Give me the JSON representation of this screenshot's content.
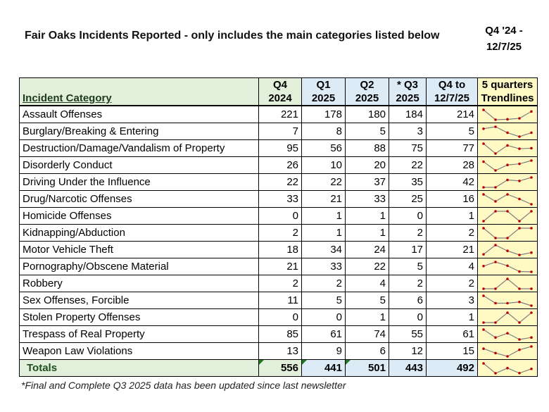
{
  "title": "Fair Oaks Incidents Reported - only includes the main categories listed below",
  "range_label": "Q4 '24 - 12/7/25",
  "headers": {
    "category": "Incident Category",
    "q4_2024": [
      "Q4",
      "2024"
    ],
    "q1_2025": [
      "Q1",
      "2025"
    ],
    "q2_2025": [
      "Q2",
      "2025"
    ],
    "q3_2025": [
      "* Q3",
      "2025"
    ],
    "q4_to_date": [
      "Q4 to",
      "12/7/25"
    ],
    "trend": [
      "5 quarters",
      "Trendlines"
    ]
  },
  "rows": [
    {
      "category": "Assault Offenses",
      "values": [
        221,
        178,
        180,
        184,
        214
      ]
    },
    {
      "category": "Burglary/Breaking & Entering",
      "values": [
        7,
        8,
        5,
        3,
        5
      ]
    },
    {
      "category": "Destruction/Damage/Vandalism of Property",
      "values": [
        95,
        56,
        88,
        75,
        77
      ]
    },
    {
      "category": "Disorderly Conduct",
      "values": [
        26,
        10,
        20,
        22,
        28
      ]
    },
    {
      "category": "Driving Under the Influence",
      "values": [
        22,
        22,
        37,
        35,
        42
      ]
    },
    {
      "category": "Drug/Narcotic Offenses",
      "values": [
        33,
        21,
        33,
        25,
        16
      ]
    },
    {
      "category": "Homicide Offenses",
      "values": [
        0,
        1,
        1,
        0,
        1
      ]
    },
    {
      "category": "Kidnapping/Abduction",
      "values": [
        2,
        1,
        1,
        2,
        2
      ]
    },
    {
      "category": "Motor Vehicle Theft",
      "values": [
        18,
        34,
        24,
        17,
        21
      ]
    },
    {
      "category": "Pornography/Obscene Material",
      "values": [
        21,
        33,
        22,
        5,
        4
      ]
    },
    {
      "category": "Robbery",
      "values": [
        2,
        2,
        4,
        2,
        2
      ]
    },
    {
      "category": "Sex Offenses, Forcible",
      "values": [
        11,
        5,
        5,
        6,
        3
      ]
    },
    {
      "category": "Stolen Property Offenses",
      "values": [
        0,
        0,
        1,
        0,
        1
      ]
    },
    {
      "category": "Trespass of Real Property",
      "values": [
        85,
        61,
        74,
        55,
        61
      ]
    },
    {
      "category": "Weapon Law Violations",
      "values": [
        13,
        9,
        6,
        12,
        15
      ]
    }
  ],
  "totals": {
    "label": "Totals",
    "values": [
      556,
      441,
      501,
      443,
      492
    ]
  },
  "footnote": "*Final and Complete Q3 2025 data has been updated since last newsletter",
  "colors": {
    "q4_2024": "#e2efda",
    "quarters": "#ddebf7",
    "trend": "#fff9c4",
    "spark_line": "#7f7f7f",
    "spark_marker": "#c00000"
  }
}
